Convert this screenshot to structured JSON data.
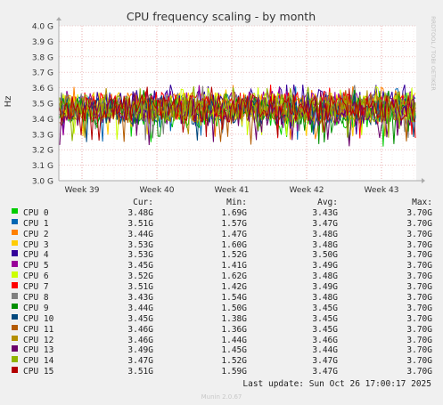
{
  "chart_data": {
    "type": "line",
    "title": "CPU frequency scaling - by month",
    "ylabel": "Hz",
    "xlabel": "",
    "watermark": "RRDTOOL / TOBI OETIKER",
    "y_ticks": [
      "3.0 G",
      "3.1 G",
      "3.2 G",
      "3.3 G",
      "3.4 G",
      "3.5 G",
      "3.6 G",
      "3.7 G",
      "3.8 G",
      "3.9 G",
      "4.0 G"
    ],
    "ylim": [
      3.0,
      4.0
    ],
    "x_ticks": [
      "Week 39",
      "Week 40",
      "Week 41",
      "Week 42",
      "Week 43"
    ],
    "grid": true,
    "series": [
      {
        "name": "CPU 0",
        "color": "#00cc00",
        "cur": "3.48G",
        "min": "1.69G",
        "avg": "3.43G",
        "max": "3.70G",
        "avg_value": 3.43,
        "min_value": 1.69,
        "max_value": 3.7
      },
      {
        "name": "CPU 1",
        "color": "#0066b3",
        "cur": "3.51G",
        "min": "1.57G",
        "avg": "3.47G",
        "max": "3.70G",
        "avg_value": 3.47,
        "min_value": 1.57,
        "max_value": 3.7
      },
      {
        "name": "CPU 2",
        "color": "#ff8000",
        "cur": "3.44G",
        "min": "1.47G",
        "avg": "3.48G",
        "max": "3.70G",
        "avg_value": 3.48,
        "min_value": 1.47,
        "max_value": 3.7
      },
      {
        "name": "CPU 3",
        "color": "#ffcc00",
        "cur": "3.53G",
        "min": "1.60G",
        "avg": "3.48G",
        "max": "3.70G",
        "avg_value": 3.48,
        "min_value": 1.6,
        "max_value": 3.7
      },
      {
        "name": "CPU 4",
        "color": "#330099",
        "cur": "3.53G",
        "min": "1.52G",
        "avg": "3.50G",
        "max": "3.70G",
        "avg_value": 3.5,
        "min_value": 1.52,
        "max_value": 3.7
      },
      {
        "name": "CPU 5",
        "color": "#990099",
        "cur": "3.45G",
        "min": "1.41G",
        "avg": "3.49G",
        "max": "3.70G",
        "avg_value": 3.49,
        "min_value": 1.41,
        "max_value": 3.7
      },
      {
        "name": "CPU 6",
        "color": "#ccff00",
        "cur": "3.52G",
        "min": "1.62G",
        "avg": "3.48G",
        "max": "3.70G",
        "avg_value": 3.48,
        "min_value": 1.62,
        "max_value": 3.7
      },
      {
        "name": "CPU 7",
        "color": "#ff0000",
        "cur": "3.51G",
        "min": "1.42G",
        "avg": "3.49G",
        "max": "3.70G",
        "avg_value": 3.49,
        "min_value": 1.42,
        "max_value": 3.7
      },
      {
        "name": "CPU 8",
        "color": "#808080",
        "cur": "3.43G",
        "min": "1.54G",
        "avg": "3.48G",
        "max": "3.70G",
        "avg_value": 3.48,
        "min_value": 1.54,
        "max_value": 3.7
      },
      {
        "name": "CPU 9",
        "color": "#008f00",
        "cur": "3.44G",
        "min": "1.50G",
        "avg": "3.45G",
        "max": "3.70G",
        "avg_value": 3.45,
        "min_value": 1.5,
        "max_value": 3.7
      },
      {
        "name": "CPU 10",
        "color": "#00487d",
        "cur": "3.45G",
        "min": "1.38G",
        "avg": "3.45G",
        "max": "3.70G",
        "avg_value": 3.45,
        "min_value": 1.38,
        "max_value": 3.7
      },
      {
        "name": "CPU 11",
        "color": "#b35a00",
        "cur": "3.46G",
        "min": "1.36G",
        "avg": "3.45G",
        "max": "3.70G",
        "avg_value": 3.45,
        "min_value": 1.36,
        "max_value": 3.7
      },
      {
        "name": "CPU 12",
        "color": "#b38f00",
        "cur": "3.46G",
        "min": "1.44G",
        "avg": "3.46G",
        "max": "3.70G",
        "avg_value": 3.46,
        "min_value": 1.44,
        "max_value": 3.7
      },
      {
        "name": "CPU 13",
        "color": "#6b006b",
        "cur": "3.49G",
        "min": "1.45G",
        "avg": "3.44G",
        "max": "3.70G",
        "avg_value": 3.44,
        "min_value": 1.45,
        "max_value": 3.7
      },
      {
        "name": "CPU 14",
        "color": "#8fb300",
        "cur": "3.47G",
        "min": "1.52G",
        "avg": "3.47G",
        "max": "3.70G",
        "avg_value": 3.47,
        "min_value": 1.52,
        "max_value": 3.7
      },
      {
        "name": "CPU 15",
        "color": "#b30000",
        "cur": "3.51G",
        "min": "1.59G",
        "avg": "3.47G",
        "max": "3.70G",
        "avg_value": 3.47,
        "min_value": 1.59,
        "max_value": 3.7
      }
    ]
  },
  "legend_header": {
    "cur": "Cur:",
    "min": "Min:",
    "avg": "Avg:",
    "max": "Max:"
  },
  "last_update": "Last update: Sun Oct 26 17:00:17 2025",
  "footer": "Munin 2.0.67"
}
